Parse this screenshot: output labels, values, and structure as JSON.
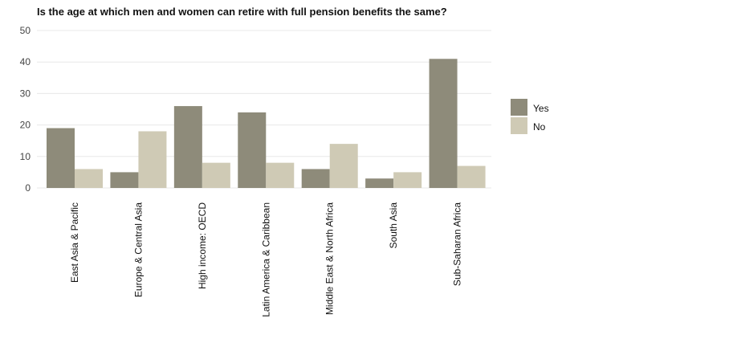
{
  "chart_data": {
    "type": "bar",
    "title": "Is the age at which men and women can retire with full pension benefits the same?",
    "xlabel": "",
    "ylabel": "",
    "ylim": [
      0,
      50
    ],
    "yticks": [
      0,
      10,
      20,
      30,
      40,
      50
    ],
    "grid": true,
    "legend_position": "right",
    "categories": [
      "East Asia & Pacific",
      "Europe & Central Asia",
      "High income: OECD",
      "Latin America & Caribbean",
      "Middle East & North Africa",
      "South Asia",
      "Sub-Saharan Africa"
    ],
    "series": [
      {
        "name": "Yes",
        "color": "#8e8b7a",
        "values": [
          19,
          5,
          26,
          24,
          6,
          3,
          41
        ]
      },
      {
        "name": "No",
        "color": "#cfcab5",
        "values": [
          6,
          18,
          8,
          8,
          14,
          5,
          7
        ]
      }
    ]
  }
}
